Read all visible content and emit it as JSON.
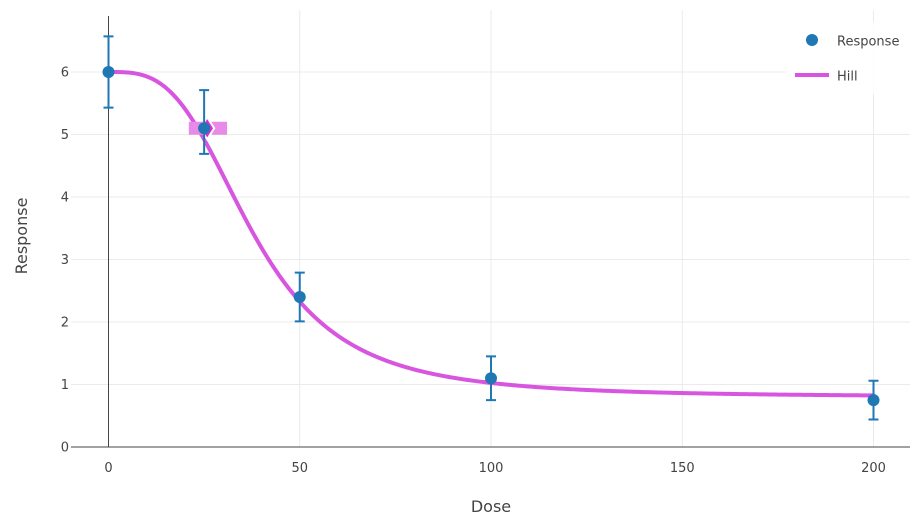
{
  "chart_data": {
    "type": "scatter",
    "xlabel": "Dose",
    "ylabel": "Response",
    "xlim": [
      -9,
      210
    ],
    "ylim": [
      0,
      6.9
    ],
    "grid": true,
    "legend_position": "top-right",
    "x_ticks": [
      0,
      50,
      100,
      150,
      200
    ],
    "y_ticks": [
      0,
      1,
      2,
      3,
      4,
      5,
      6
    ],
    "series": [
      {
        "name": "Response",
        "kind": "markers",
        "color": "#1f77b4",
        "points": [
          {
            "x": 0,
            "y": 6.0,
            "err_lo": 5.43,
            "err_hi": 6.57
          },
          {
            "x": 25,
            "y": 5.1,
            "err_lo": 4.69,
            "err_hi": 5.71
          },
          {
            "x": 50,
            "y": 2.4,
            "err_lo": 2.01,
            "err_hi": 2.79
          },
          {
            "x": 100,
            "y": 1.1,
            "err_lo": 0.75,
            "err_hi": 1.45
          },
          {
            "x": 200,
            "y": 0.75,
            "err_lo": 0.44,
            "err_hi": 1.06
          }
        ]
      },
      {
        "name": "Hill",
        "kind": "line",
        "color": "#d855e0",
        "model": {
          "bottom": 0.8,
          "top": 6.0,
          "ec50": 38,
          "hill": 3.2,
          "x_start": 0,
          "x_end": 200
        }
      }
    ],
    "highlight": {
      "x": 25.8,
      "y": 5.1,
      "color": "#d42fd4",
      "band_color": "#e88ae8",
      "band_x": [
        21,
        31
      ]
    }
  }
}
